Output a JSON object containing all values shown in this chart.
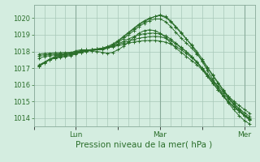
{
  "title": "Pression niveau de la mer( hPa )",
  "bg_color": "#d4ede0",
  "grid_color": "#a8c8b8",
  "line_color": "#2a6e2a",
  "ylim": [
    1013.5,
    1020.8
  ],
  "yticks": [
    1014,
    1015,
    1016,
    1017,
    1018,
    1019,
    1020
  ],
  "xlim": [
    0,
    126
  ],
  "xtick_labels": [
    "",
    "Lun",
    "",
    "Mar",
    "",
    "Mer"
  ],
  "xtick_positions": [
    0,
    24,
    48,
    72,
    96,
    120
  ],
  "major_vlines": [
    24,
    72,
    120
  ],
  "series_x": [
    [
      3,
      6,
      9,
      12,
      15,
      18,
      21,
      24,
      27,
      30,
      33,
      36,
      39,
      42,
      45,
      48,
      51,
      54,
      57,
      60,
      63,
      66,
      69,
      72,
      75,
      78,
      81,
      84,
      87,
      90,
      93,
      96,
      99,
      102,
      105,
      108,
      111,
      114,
      117,
      120,
      123
    ],
    [
      3,
      6,
      9,
      12,
      15,
      18,
      21,
      24,
      27,
      30,
      33,
      36,
      39,
      42,
      45,
      48,
      51,
      54,
      57,
      60,
      63,
      66,
      69,
      72,
      75,
      78,
      81,
      84,
      87,
      90,
      93,
      96,
      99,
      102,
      105,
      108,
      111,
      114,
      117,
      120,
      123
    ],
    [
      3,
      6,
      9,
      12,
      15,
      18,
      21,
      24,
      27,
      30,
      33,
      36,
      39,
      42,
      45,
      48,
      51,
      54,
      57,
      60,
      63,
      66,
      69,
      72,
      75,
      78,
      81,
      84,
      87,
      90,
      93,
      96,
      99,
      102,
      105,
      108,
      111,
      114,
      117,
      120,
      123
    ],
    [
      3,
      6,
      9,
      12,
      15,
      18,
      21,
      24,
      27,
      30,
      33,
      36,
      39,
      42,
      45,
      48,
      51,
      54,
      57,
      60,
      63,
      66,
      69,
      72,
      75,
      78,
      81,
      84,
      87,
      90,
      93,
      96,
      99,
      102,
      105,
      108,
      111,
      114,
      117,
      120,
      123
    ],
    [
      3,
      6,
      9,
      12,
      15,
      18,
      21,
      24,
      27,
      30,
      33,
      36,
      39,
      42,
      45,
      48,
      51,
      54,
      57,
      60,
      63,
      66,
      69,
      72,
      75,
      78,
      81,
      84,
      87,
      90,
      93,
      96,
      99,
      102,
      105,
      108,
      111,
      114,
      117,
      120,
      123
    ],
    [
      3,
      6,
      9,
      12,
      15,
      18,
      21,
      24,
      27,
      30,
      33,
      36,
      39,
      42,
      45,
      48,
      51,
      54,
      57,
      60,
      63,
      66,
      69,
      72,
      75,
      78,
      81,
      84,
      87,
      90,
      93,
      96,
      99,
      102,
      105,
      108,
      111,
      114,
      117,
      120,
      123
    ],
    [
      3,
      6,
      9,
      12,
      15,
      18,
      21,
      24,
      27,
      30,
      33,
      36,
      39,
      42,
      45,
      48,
      51,
      54,
      57,
      60,
      63,
      66,
      69,
      72,
      75,
      78,
      81,
      84,
      87,
      90,
      93,
      96,
      99,
      102,
      105,
      108,
      111,
      114,
      117,
      120,
      123
    ]
  ],
  "pressures": [
    [
      1017.1,
      1017.35,
      1017.55,
      1017.7,
      1017.8,
      1017.85,
      1017.9,
      1018.05,
      1018.1,
      1018.1,
      1018.05,
      1018.0,
      1017.95,
      1017.9,
      1017.95,
      1018.1,
      1018.3,
      1018.55,
      1018.85,
      1019.1,
      1019.25,
      1019.3,
      1019.25,
      1019.1,
      1018.85,
      1018.5,
      1018.2,
      1017.95,
      1017.7,
      1017.45,
      1017.2,
      1016.9,
      1016.5,
      1016.1,
      1015.7,
      1015.3,
      1014.95,
      1014.65,
      1014.4,
      1014.15,
      1013.9
    ],
    [
      1017.1,
      1017.3,
      1017.5,
      1017.65,
      1017.75,
      1017.8,
      1017.85,
      1017.95,
      1018.05,
      1018.1,
      1018.1,
      1018.1,
      1018.1,
      1018.2,
      1018.35,
      1018.55,
      1018.75,
      1019.0,
      1019.25,
      1019.5,
      1019.7,
      1019.85,
      1019.95,
      1019.95,
      1019.8,
      1019.5,
      1019.15,
      1018.8,
      1018.5,
      1018.2,
      1017.85,
      1017.45,
      1017.0,
      1016.55,
      1016.1,
      1015.65,
      1015.2,
      1014.8,
      1014.45,
      1014.15,
      1013.9
    ],
    [
      1017.15,
      1017.35,
      1017.5,
      1017.6,
      1017.7,
      1017.75,
      1017.8,
      1017.9,
      1018.0,
      1018.05,
      1018.1,
      1018.1,
      1018.15,
      1018.25,
      1018.4,
      1018.6,
      1018.85,
      1019.1,
      1019.35,
      1019.6,
      1019.8,
      1019.95,
      1020.1,
      1020.15,
      1020.05,
      1019.8,
      1019.45,
      1019.1,
      1018.75,
      1018.4,
      1018.0,
      1017.55,
      1017.05,
      1016.6,
      1016.15,
      1015.7,
      1015.3,
      1014.9,
      1014.55,
      1014.2,
      1013.95
    ],
    [
      1017.2,
      1017.35,
      1017.5,
      1017.6,
      1017.65,
      1017.7,
      1017.75,
      1017.85,
      1017.95,
      1018.05,
      1018.1,
      1018.15,
      1018.2,
      1018.3,
      1018.45,
      1018.65,
      1018.9,
      1019.15,
      1019.4,
      1019.65,
      1019.85,
      1020.0,
      1020.1,
      1020.2,
      1020.1,
      1019.85,
      1019.5,
      1019.15,
      1018.75,
      1018.35,
      1017.9,
      1017.4,
      1016.85,
      1016.35,
      1015.85,
      1015.35,
      1014.9,
      1014.5,
      1014.15,
      1013.85,
      1013.65
    ],
    [
      1017.6,
      1017.7,
      1017.75,
      1017.8,
      1017.8,
      1017.82,
      1017.85,
      1017.9,
      1017.95,
      1018.0,
      1018.05,
      1018.1,
      1018.15,
      1018.2,
      1018.3,
      1018.45,
      1018.6,
      1018.75,
      1018.9,
      1019.0,
      1019.07,
      1019.1,
      1019.1,
      1019.05,
      1018.95,
      1018.75,
      1018.5,
      1018.25,
      1018.0,
      1017.7,
      1017.35,
      1016.95,
      1016.5,
      1016.1,
      1015.7,
      1015.35,
      1015.0,
      1014.7,
      1014.45,
      1014.2,
      1014.0
    ],
    [
      1017.75,
      1017.8,
      1017.82,
      1017.84,
      1017.86,
      1017.88,
      1017.9,
      1017.95,
      1018.0,
      1018.05,
      1018.1,
      1018.15,
      1018.2,
      1018.25,
      1018.32,
      1018.42,
      1018.52,
      1018.62,
      1018.72,
      1018.8,
      1018.85,
      1018.88,
      1018.9,
      1018.88,
      1018.8,
      1018.65,
      1018.45,
      1018.22,
      1017.98,
      1017.7,
      1017.38,
      1017.0,
      1016.6,
      1016.2,
      1015.82,
      1015.48,
      1015.15,
      1014.85,
      1014.58,
      1014.32,
      1014.1
    ],
    [
      1017.85,
      1017.88,
      1017.9,
      1017.92,
      1017.93,
      1017.94,
      1017.95,
      1018.0,
      1018.05,
      1018.08,
      1018.12,
      1018.15,
      1018.18,
      1018.22,
      1018.28,
      1018.35,
      1018.42,
      1018.5,
      1018.57,
      1018.62,
      1018.65,
      1018.66,
      1018.66,
      1018.63,
      1018.56,
      1018.45,
      1018.3,
      1018.1,
      1017.88,
      1017.63,
      1017.35,
      1017.0,
      1016.63,
      1016.27,
      1015.92,
      1015.6,
      1015.3,
      1015.02,
      1014.76,
      1014.52,
      1014.3
    ]
  ]
}
